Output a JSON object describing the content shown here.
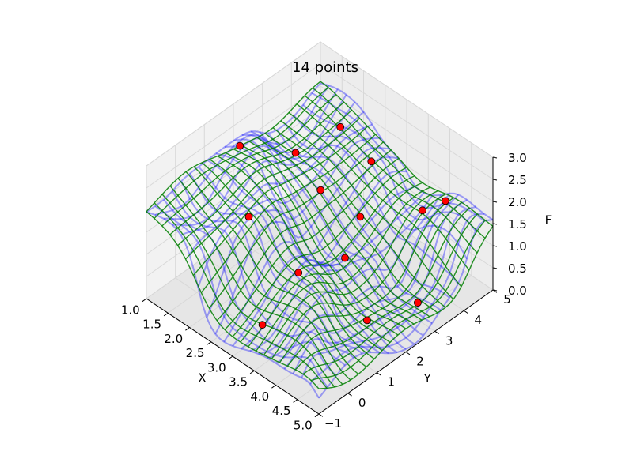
{
  "chart_data": {
    "type": "surface",
    "title": "14 points",
    "xlabel": "X",
    "ylabel": "Y",
    "zlabel": "F",
    "xlim": [
      1.0,
      5.0
    ],
    "ylim": [
      -1.0,
      5.0
    ],
    "zlim": [
      0.0,
      3.0
    ],
    "xticks": [
      "1.0",
      "1.5",
      "2.0",
      "2.5",
      "3.0",
      "3.5",
      "4.0",
      "4.5",
      "5.0"
    ],
    "yticks": [
      "−1",
      "0",
      "1",
      "2",
      "3",
      "4",
      "5"
    ],
    "zticks": [
      "0.0",
      "0.5",
      "1.0",
      "1.5",
      "2.0",
      "2.5",
      "3.0"
    ],
    "grid": true,
    "colors": {
      "true_surface": "#0000ff",
      "fit_surface": "#007f00",
      "points": "#ff0000",
      "point_edge": "#000000"
    },
    "series": [
      {
        "kind": "wireframe",
        "color": "#0000ff",
        "opacity": 0.35
      },
      {
        "kind": "wireframe",
        "color": "#007f00",
        "opacity": 0.85
      },
      {
        "kind": "scatter",
        "color": "#ff0000",
        "count": 14
      }
    ],
    "points": [
      {
        "x": 1.15,
        "y": 2.0,
        "z": 2.15
      },
      {
        "x": 2.0,
        "y": 4.2,
        "z": 2.1
      },
      {
        "x": 2.65,
        "y": 4.3,
        "z": 1.7
      },
      {
        "x": 3.6,
        "y": 4.65,
        "z": 1.05
      },
      {
        "x": 4.2,
        "y": 4.55,
        "z": 1.7
      },
      {
        "x": 1.6,
        "y": 3.25,
        "z": 1.7
      },
      {
        "x": 3.0,
        "y": 3.4,
        "z": 1.1
      },
      {
        "x": 2.45,
        "y": 2.85,
        "z": 1.6
      },
      {
        "x": 3.25,
        "y": 2.5,
        "z": 0.75
      },
      {
        "x": 4.5,
        "y": 3.15,
        "z": 0.25
      },
      {
        "x": 2.3,
        "y": 0.6,
        "z": 1.95
      },
      {
        "x": 3.35,
        "y": 0.75,
        "z": 1.3
      },
      {
        "x": 4.3,
        "y": 1.7,
        "z": 0.4
      },
      {
        "x": 3.05,
        "y": -0.05,
        "z": 0.3
      }
    ]
  }
}
